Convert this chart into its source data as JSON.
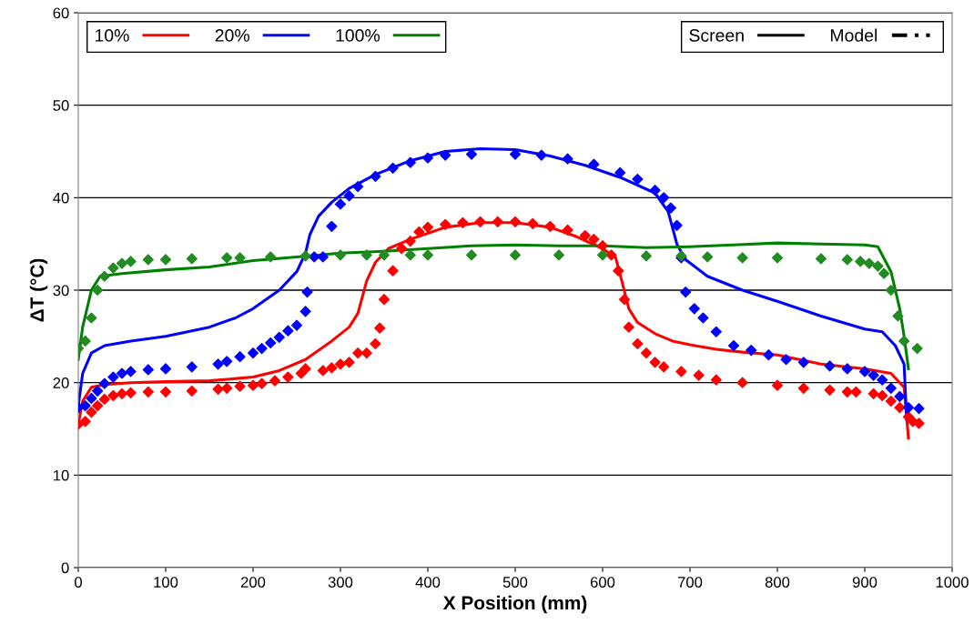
{
  "chart_data": {
    "type": "line",
    "xlabel": "X Position (mm)",
    "ylabel": "ΔT (°C)",
    "xlim": [
      0,
      1000
    ],
    "ylim": [
      0,
      60
    ],
    "xticks": [
      0,
      100,
      200,
      300,
      400,
      500,
      600,
      700,
      800,
      900,
      1000
    ],
    "yticks": [
      0,
      10,
      20,
      30,
      40,
      50,
      60
    ],
    "grid": "y",
    "legend": "top left",
    "series": [
      {
        "name": "10%",
        "color": "#ff0000",
        "line_style": "solid",
        "x": [
          0,
          5,
          15,
          30,
          60,
          100,
          150,
          200,
          230,
          260,
          290,
          310,
          320,
          330,
          340,
          355,
          380,
          420,
          460,
          500,
          540,
          570,
          600,
          615,
          622,
          630,
          640,
          660,
          680,
          700,
          730,
          760,
          800,
          850,
          900,
          930,
          945,
          950
        ],
        "values": [
          15.5,
          18,
          19.5,
          19.8,
          20,
          20.1,
          20.2,
          20.6,
          21.3,
          22.5,
          24.5,
          26,
          27.5,
          31,
          33,
          34.5,
          35.5,
          36.8,
          37.3,
          37.3,
          36.8,
          35.8,
          34.5,
          33.5,
          31,
          28,
          26.5,
          25.3,
          24.5,
          24.1,
          23.6,
          23.3,
          23,
          22,
          21.5,
          21,
          19.5,
          14
        ]
      },
      {
        "name": "20%",
        "color": "#0000ff",
        "line_style": "solid",
        "x": [
          0,
          5,
          15,
          30,
          60,
          100,
          150,
          180,
          200,
          230,
          250,
          260,
          265,
          275,
          290,
          310,
          340,
          380,
          420,
          460,
          500,
          540,
          580,
          620,
          660,
          675,
          685,
          695,
          720,
          760,
          800,
          850,
          900,
          920,
          935,
          945,
          948
        ],
        "values": [
          17.5,
          21,
          23.2,
          24,
          24.5,
          25,
          26,
          27,
          28,
          30,
          32,
          34,
          36,
          38,
          39.5,
          41,
          42.5,
          44,
          45,
          45.3,
          45.2,
          44.5,
          43.5,
          42.2,
          40.5,
          38.5,
          35,
          33.3,
          31.5,
          30,
          28.8,
          27.2,
          25.8,
          25.5,
          24,
          22,
          16
        ]
      },
      {
        "name": "100%",
        "color": "#008000",
        "line_style": "solid",
        "x": [
          0,
          5,
          15,
          25,
          50,
          100,
          150,
          200,
          250,
          300,
          350,
          400,
          450,
          500,
          550,
          600,
          650,
          700,
          750,
          800,
          850,
          900,
          915,
          930,
          940,
          945,
          950
        ],
        "values": [
          22.5,
          26,
          30,
          31.5,
          31.8,
          32.2,
          32.5,
          33.2,
          33.6,
          34,
          34.2,
          34.5,
          34.8,
          34.9,
          34.8,
          34.8,
          34.6,
          34.7,
          34.9,
          35.1,
          35,
          34.9,
          34.7,
          32,
          28,
          25,
          21.5
        ]
      },
      {
        "type": "scatter",
        "color": "#ff0000",
        "marker": "diamond",
        "x": [
          0,
          8,
          15,
          22,
          30,
          40,
          50,
          60,
          80,
          100,
          130,
          160,
          170,
          185,
          200,
          210,
          225,
          240,
          255,
          260,
          280,
          290,
          300,
          310,
          320,
          330,
          340,
          345,
          350,
          360,
          370,
          380,
          390,
          400,
          420,
          440,
          460,
          480,
          500,
          520,
          540,
          560,
          580,
          590,
          600,
          610,
          618,
          625,
          630,
          640,
          650,
          660,
          670,
          690,
          710,
          730,
          760,
          800,
          830,
          860,
          880,
          890,
          910,
          920,
          930,
          940,
          950,
          955,
          962
        ],
        "values": [
          15.5,
          15.8,
          16.8,
          17.5,
          18.2,
          18.6,
          18.8,
          18.9,
          19,
          19,
          19.1,
          19.3,
          19.4,
          19.6,
          19.7,
          19.9,
          20.2,
          20.6,
          21,
          21.5,
          21.3,
          21.6,
          22,
          22.2,
          23.2,
          23.2,
          24.2,
          25.9,
          29,
          32.1,
          34.5,
          35.3,
          36.3,
          36.8,
          37.1,
          37.3,
          37.4,
          37.4,
          37.4,
          37.2,
          36.9,
          36.5,
          35.9,
          35.5,
          34.8,
          33.8,
          32.1,
          29,
          26,
          24.2,
          23.2,
          22.2,
          21.7,
          21.2,
          20.8,
          20.3,
          20,
          19.7,
          19.4,
          19.2,
          19,
          19,
          18.8,
          18.6,
          18,
          17.3,
          16.3,
          15.8,
          15.6
        ]
      },
      {
        "type": "scatter",
        "color": "#0000ff",
        "marker": "diamond",
        "x": [
          0,
          8,
          15,
          22,
          30,
          40,
          50,
          60,
          80,
          100,
          130,
          160,
          170,
          185,
          200,
          210,
          220,
          230,
          240,
          250,
          260,
          262,
          270,
          280,
          290,
          300,
          310,
          320,
          340,
          360,
          380,
          400,
          420,
          450,
          500,
          530,
          560,
          590,
          620,
          640,
          660,
          670,
          678,
          685,
          690,
          695,
          705,
          715,
          730,
          750,
          770,
          790,
          810,
          830,
          860,
          880,
          900,
          910,
          920,
          930,
          940,
          950,
          962
        ],
        "values": [
          17.3,
          17.5,
          18.3,
          19.1,
          19.9,
          20.6,
          21,
          21.2,
          21.4,
          21.5,
          21.7,
          22,
          22.3,
          22.8,
          23.2,
          23.7,
          24.3,
          24.9,
          25.6,
          26.2,
          27.7,
          29.8,
          33.6,
          33.6,
          36.9,
          39.3,
          40.2,
          41.2,
          42.3,
          43.2,
          43.8,
          44.3,
          44.6,
          44.7,
          44.7,
          44.6,
          44.2,
          43.6,
          42.7,
          42,
          40.8,
          40,
          38.9,
          37,
          33.5,
          29.8,
          28,
          27,
          25.5,
          24,
          23.5,
          23,
          22.5,
          22.2,
          21.8,
          21.5,
          21.2,
          20.8,
          20.3,
          19.4,
          18.5,
          17.3,
          17.2
        ]
      },
      {
        "type": "scatter",
        "color": "#228b22",
        "marker": "diamond",
        "x": [
          0,
          8,
          15,
          22,
          30,
          40,
          50,
          60,
          80,
          100,
          130,
          170,
          185,
          220,
          260,
          300,
          330,
          350,
          380,
          400,
          450,
          500,
          550,
          600,
          650,
          690,
          720,
          760,
          800,
          850,
          880,
          895,
          905,
          915,
          922,
          930,
          938,
          945,
          960
        ],
        "values": [
          23.7,
          24.5,
          27,
          30,
          31.5,
          32.4,
          32.9,
          33.1,
          33.3,
          33.3,
          33.4,
          33.5,
          33.5,
          33.6,
          33.7,
          33.8,
          33.8,
          33.8,
          33.8,
          33.8,
          33.8,
          33.8,
          33.8,
          33.8,
          33.7,
          33.7,
          33.6,
          33.5,
          33.5,
          33.4,
          33.3,
          33.1,
          32.9,
          32.6,
          31.8,
          30,
          27.2,
          24.5,
          23.7
        ]
      },
      {
        "name": "Screen",
        "color": "#000000",
        "line_style": "solid"
      },
      {
        "name": "Model",
        "color": "#000000",
        "line_style": "dashed"
      }
    ]
  }
}
